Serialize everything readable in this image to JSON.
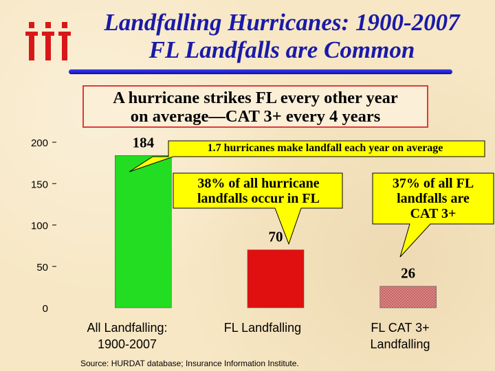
{
  "title_line1": "Landfalling Hurricanes: 1900-2007",
  "title_line2": "FL Landfalls are Common",
  "headline_line1": "A hurricane strikes FL every other year",
  "headline_line2": "on average—CAT 3+ every 4 years",
  "logo_icon": "iii-logo-icon",
  "callouts": {
    "c1": "1.7 hurricanes make landfall each year on average",
    "c2_line1": "38% of all hurricane",
    "c2_line2": "landfalls occur in FL",
    "c3_line1": "37% of all FL",
    "c3_line2": "landfalls are",
    "c3_line3": "CAT 3+"
  },
  "source": "Source: HURDAT database; Insurance Information Institute.",
  "chart_data": {
    "type": "bar",
    "title": "",
    "xlabel": "",
    "ylabel": "",
    "ylim": [
      0,
      200
    ],
    "yticks": [
      0,
      50,
      100,
      150,
      200
    ],
    "grid": false,
    "categories": [
      "All Landfalling: 1900-2007",
      "FL Landfalling",
      "FL CAT 3+ Landfalling"
    ],
    "category_lines": [
      [
        "All Landfalling:",
        "1900-2007"
      ],
      [
        "FL Landfalling"
      ],
      [
        "FL CAT 3+",
        "Landfalling"
      ]
    ],
    "values": [
      184,
      70,
      26
    ],
    "data_labels": [
      "184",
      "70",
      "26"
    ],
    "colors": [
      "#22dd22",
      "#e01010",
      "#d08080"
    ],
    "patterns": [
      "solid",
      "solid",
      "dotted"
    ]
  }
}
